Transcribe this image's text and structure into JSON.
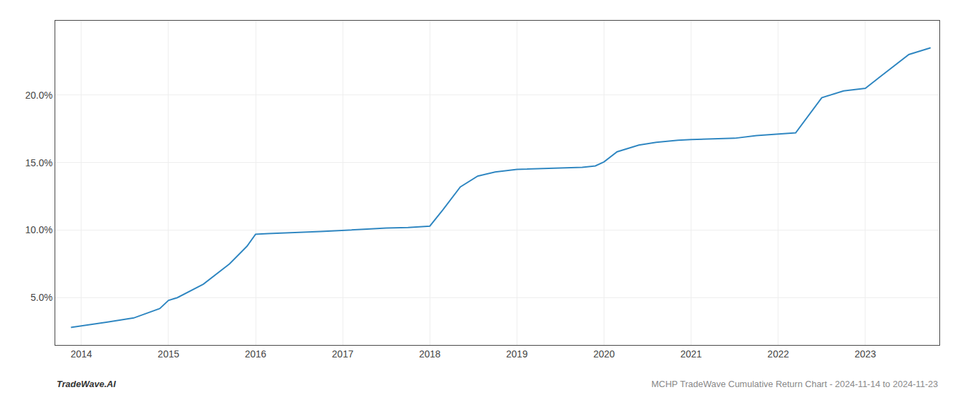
{
  "chart_data": {
    "type": "line",
    "x": [
      2013.88,
      2014.1,
      2014.3,
      2014.6,
      2014.9,
      2015.0,
      2015.1,
      2015.4,
      2015.7,
      2015.9,
      2016.0,
      2016.15,
      2016.3,
      2016.55,
      2016.75,
      2016.9,
      2017.0,
      2017.15,
      2017.3,
      2017.5,
      2017.75,
      2017.95,
      2018.0,
      2018.15,
      2018.35,
      2018.55,
      2018.75,
      2019.0,
      2019.2,
      2019.5,
      2019.75,
      2019.9,
      2020.0,
      2020.15,
      2020.4,
      2020.6,
      2020.75,
      2020.85,
      2021.0,
      2021.2,
      2021.5,
      2021.75,
      2021.85,
      2022.0,
      2022.2,
      2022.5,
      2022.75,
      2023.0,
      2023.2,
      2023.5,
      2023.75
    ],
    "values": [
      2.8,
      3.0,
      3.2,
      3.5,
      4.2,
      4.8,
      5.0,
      6.0,
      7.5,
      8.8,
      9.7,
      9.75,
      9.8,
      9.85,
      9.9,
      9.95,
      10.0,
      10.05,
      10.1,
      10.15,
      10.2,
      10.25,
      10.3,
      11.5,
      13.2,
      14.0,
      14.3,
      14.5,
      14.55,
      14.6,
      14.65,
      14.75,
      15.05,
      15.8,
      16.3,
      16.5,
      16.6,
      16.65,
      16.7,
      16.75,
      16.8,
      17.0,
      17.05,
      17.1,
      17.2,
      19.8,
      20.3,
      20.5,
      21.5,
      23.0,
      23.5
    ],
    "color": "#2e86c1",
    "xlim": [
      2013.7,
      2023.85
    ],
    "xticks": [
      2014,
      2015,
      2016,
      2017,
      2018,
      2019,
      2020,
      2021,
      2022,
      2023
    ],
    "ylim": [
      1.5,
      25.5
    ],
    "yticks": [
      {
        "value": 5.0,
        "label": "5.0%"
      },
      {
        "value": 10.0,
        "label": "10.0%"
      },
      {
        "value": 15.0,
        "label": "15.0%"
      },
      {
        "value": 20.0,
        "label": "20.0%"
      }
    ],
    "grid": true,
    "annotations": [
      "TradeWave.AI",
      "MCHP TradeWave Cumulative Return Chart - 2024-11-14 to 2024-11-23"
    ]
  }
}
